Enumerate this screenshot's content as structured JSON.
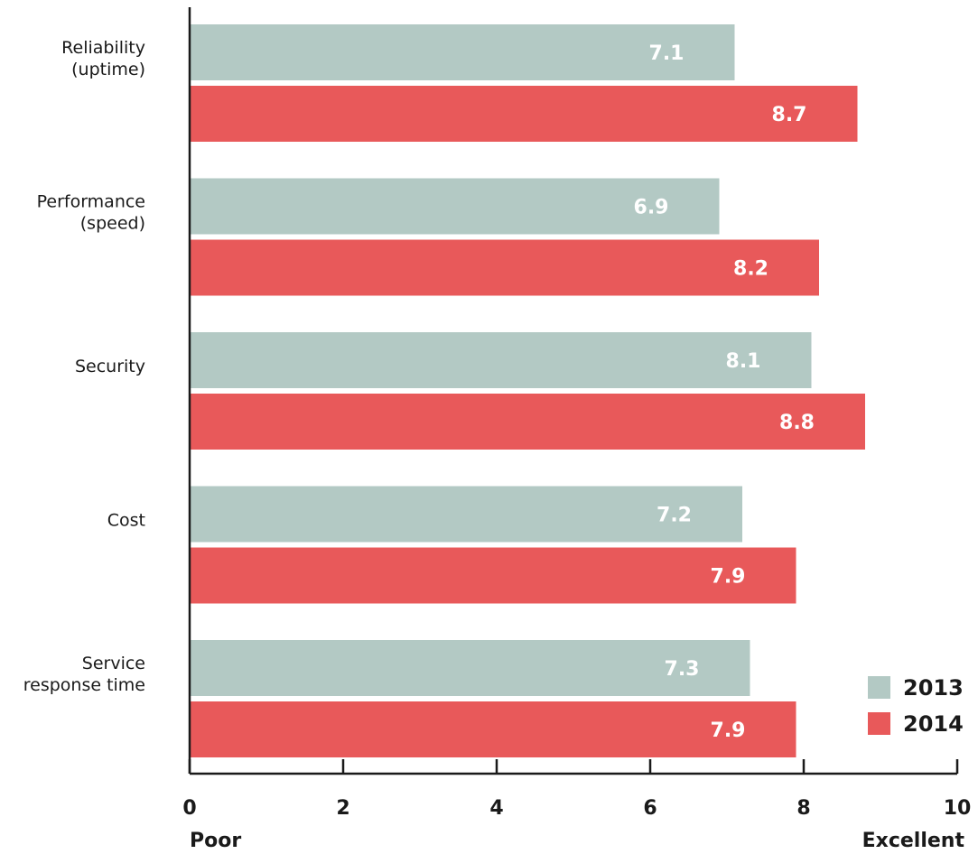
{
  "chart_data": {
    "type": "bar",
    "orientation": "horizontal",
    "categories": [
      [
        "Reliability",
        "(uptime)"
      ],
      [
        "Performance",
        "(speed)"
      ],
      [
        "Security"
      ],
      [
        "Cost"
      ],
      [
        "Service",
        "response time"
      ]
    ],
    "series": [
      {
        "name": "2013",
        "color": "#b3c9c4",
        "values": [
          7.1,
          6.9,
          8.1,
          7.2,
          7.3
        ],
        "labels": [
          "7.1",
          "6.9",
          "8.1",
          "7.2",
          "7.3"
        ]
      },
      {
        "name": "2014",
        "color": "#e8595a",
        "values": [
          8.7,
          8.2,
          8.8,
          7.9,
          7.9
        ],
        "labels": [
          "8.7",
          "8.2",
          "8.8",
          "7.9",
          "7.9"
        ]
      }
    ],
    "xlim": [
      0,
      10
    ],
    "xticks": [
      0,
      2,
      4,
      6,
      8,
      10
    ],
    "xtick_labels": [
      "0",
      "2",
      "4",
      "6",
      "8",
      "10"
    ],
    "scale_min_label": "Poor",
    "scale_max_label": "Excellent",
    "legend_position": "bottom-right",
    "grid": false
  }
}
